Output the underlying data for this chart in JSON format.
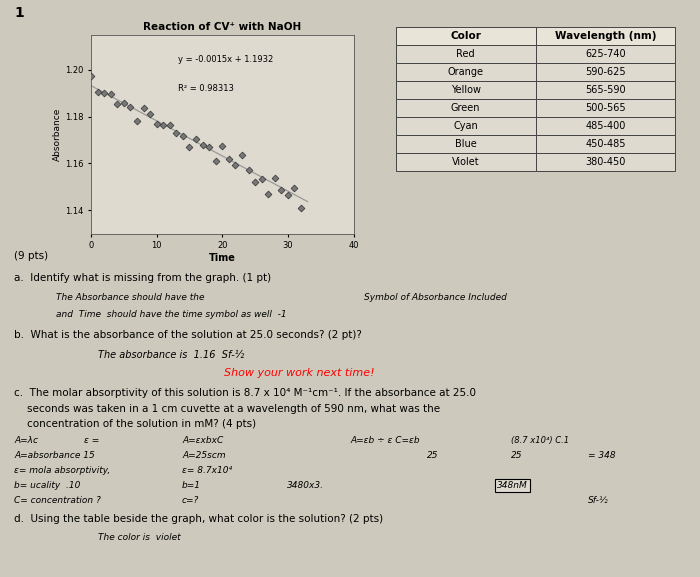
{
  "title": "Reaction of CV⁺ with NaOH",
  "xlabel": "Time",
  "ylabel": "Absorbance",
  "equation": "y = -0.0015x + 1.1932",
  "r_squared": "R² = 0.98313",
  "slope": -0.0015,
  "intercept": 1.1932,
  "x_data": [
    0,
    1,
    2,
    3,
    4,
    5,
    6,
    7,
    8,
    9,
    10,
    11,
    12,
    13,
    14,
    15,
    16,
    17,
    18,
    19,
    20,
    21,
    22,
    23,
    24,
    25,
    26,
    27,
    28,
    29,
    30,
    31,
    32
  ],
  "xlim": [
    0,
    40
  ],
  "ylim": [
    1.13,
    1.215
  ],
  "yticks": [
    1.14,
    1.16,
    1.18,
    1.2
  ],
  "xticks": [
    0,
    10,
    20,
    30,
    40
  ],
  "bg_color": "#cdc9bc",
  "plot_bg": "#dedad0",
  "table_colors": [
    "Red",
    "Orange",
    "Yellow",
    "Green",
    "Cyan",
    "Blue",
    "Violet"
  ],
  "table_wavelengths": [
    "625-740",
    "590-625",
    "565-590",
    "500-565",
    "485-400",
    "450-485",
    "380-450"
  ]
}
